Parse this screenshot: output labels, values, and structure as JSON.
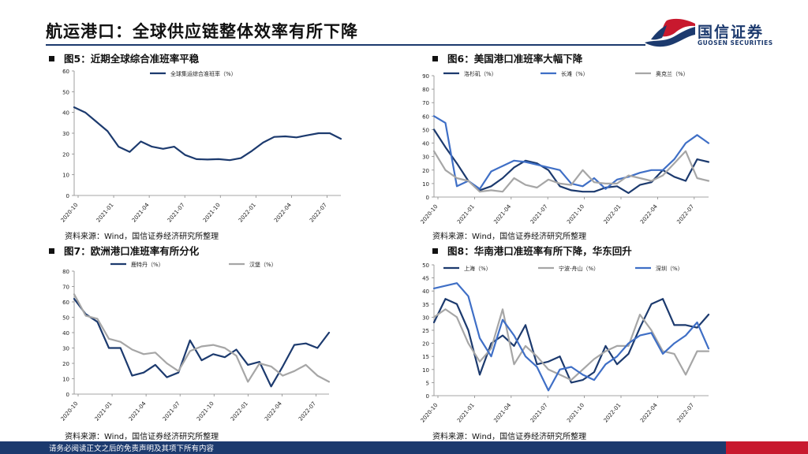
{
  "page": {
    "title": "航运港口：全球供应链整体效率有所下降",
    "logo_cn": "国信证券",
    "logo_en": "GUOSEN SECURITIES",
    "footer": "请务必阅读正文之后的免责声明及其项下所有内容",
    "colors": {
      "navy": "#1c3a6e",
      "red": "#c8192e",
      "blue": "#3f6fc6",
      "gray": "#a6a6a6"
    }
  },
  "source_text": "资料来源：Wind，国信证券经济研究所整理",
  "chart_data": [
    {
      "id": "fig5",
      "title": "图5：近期全球综合准班率平稳",
      "type": "line",
      "xticks": [
        "2020-10",
        "2021-01",
        "2021-04",
        "2021-07",
        "2021-10",
        "2022-01",
        "2022-04",
        "2022-07"
      ],
      "ylim": [
        0,
        60
      ],
      "yticks": [
        0,
        10,
        20,
        30,
        40,
        50,
        60
      ],
      "series": [
        {
          "name": "全球集运综合准班率（%）",
          "color": "#1c3a6e",
          "values": [
            42.5,
            40,
            35.5,
            31,
            23.5,
            21,
            26,
            23.5,
            22.5,
            23.5,
            19.5,
            17.5,
            17.3,
            17.5,
            17,
            18,
            21.5,
            25.5,
            28.2,
            28.5,
            28,
            29,
            30,
            30,
            27.3
          ]
        }
      ]
    },
    {
      "id": "fig6",
      "title": "图6：美国港口准班率大幅下降",
      "type": "line",
      "xticks": [
        "2020-10",
        "2021-01",
        "2021-04",
        "2021-07",
        "2021-10",
        "2022-01",
        "2022-04",
        "2022-07"
      ],
      "ylim": [
        0,
        90
      ],
      "yticks": [
        0,
        10,
        20,
        30,
        40,
        50,
        60,
        70,
        80,
        90
      ],
      "series": [
        {
          "name": "洛杉矶（%）",
          "color": "#1c3a6e",
          "values": [
            50,
            37,
            25,
            12,
            5,
            8,
            14,
            22,
            27,
            25,
            20,
            8,
            5,
            4,
            4,
            7,
            8,
            3,
            9,
            11,
            20,
            15,
            12,
            28,
            26
          ]
        },
        {
          "name": "长滩（%）",
          "color": "#3f6fc6",
          "values": [
            60,
            55,
            8,
            12,
            6,
            19,
            23,
            27,
            26,
            24,
            22,
            20,
            10,
            8,
            14,
            6,
            13,
            15,
            18,
            20,
            20,
            28,
            40,
            46,
            40
          ]
        },
        {
          "name": "奥克兰（%）",
          "color": "#a6a6a6",
          "values": [
            34,
            20,
            14,
            12,
            4,
            5,
            4,
            14,
            9,
            7,
            13,
            10,
            9,
            20,
            11,
            10,
            10,
            16,
            14,
            12,
            16,
            25,
            34,
            14,
            12
          ]
        }
      ]
    },
    {
      "id": "fig7",
      "title": "图7：欧洲港口准班率有所分化",
      "type": "line",
      "xticks": [
        "2020-10",
        "2021-01",
        "2021-04",
        "2021-07",
        "2021-10",
        "2022-01",
        "2022-04",
        "2022-07"
      ],
      "ylim": [
        0,
        80
      ],
      "yticks": [
        0,
        10,
        20,
        30,
        40,
        50,
        60,
        70,
        80
      ],
      "series": [
        {
          "name": "鹿特丹（%）",
          "color": "#1c3a6e",
          "values": [
            62,
            52,
            47,
            30,
            30,
            12,
            14,
            19,
            11,
            14,
            35,
            22,
            26,
            24,
            29,
            19,
            21,
            5,
            18,
            32,
            33,
            30,
            40
          ]
        },
        {
          "name": "汉堡（%）",
          "color": "#a6a6a6",
          "values": [
            65,
            51,
            49,
            36,
            34,
            29,
            26,
            27,
            20,
            15,
            28,
            31,
            32,
            30,
            25,
            8,
            20,
            18,
            12,
            15,
            19,
            12,
            8
          ]
        }
      ]
    },
    {
      "id": "fig8",
      "title": "图8：华南港口准班率有所下降，华东回升",
      "type": "line",
      "xticks": [
        "2020-10",
        "2021-01",
        "2021-04",
        "2021-07",
        "2021-10",
        "2022-01",
        "2022-04",
        "2022-07"
      ],
      "ylim": [
        0,
        50
      ],
      "yticks": [
        0,
        5,
        10,
        15,
        20,
        25,
        30,
        35,
        40,
        45,
        50
      ],
      "series": [
        {
          "name": "上海（%）",
          "color": "#1c3a6e",
          "values": [
            28,
            37,
            35,
            25,
            8,
            20,
            23,
            19,
            27,
            12,
            13,
            15,
            5,
            6,
            9,
            19,
            12,
            16,
            26,
            35,
            37,
            27,
            27,
            26,
            31
          ]
        },
        {
          "name": "宁波-舟山（%）",
          "color": "#a6a6a6",
          "values": [
            30,
            33,
            30,
            20,
            13,
            18,
            33,
            12,
            19,
            15,
            10,
            8,
            6,
            10,
            14,
            17,
            19,
            19,
            31,
            25,
            17,
            16,
            8,
            17,
            17
          ]
        },
        {
          "name": "深圳（%）",
          "color": "#3f6fc6",
          "values": [
            41,
            42,
            43,
            38,
            22,
            15,
            29,
            23,
            15,
            11,
            2,
            10,
            11,
            8,
            6,
            12,
            15,
            20,
            23,
            24,
            16,
            20,
            23,
            28,
            18
          ]
        }
      ]
    }
  ]
}
